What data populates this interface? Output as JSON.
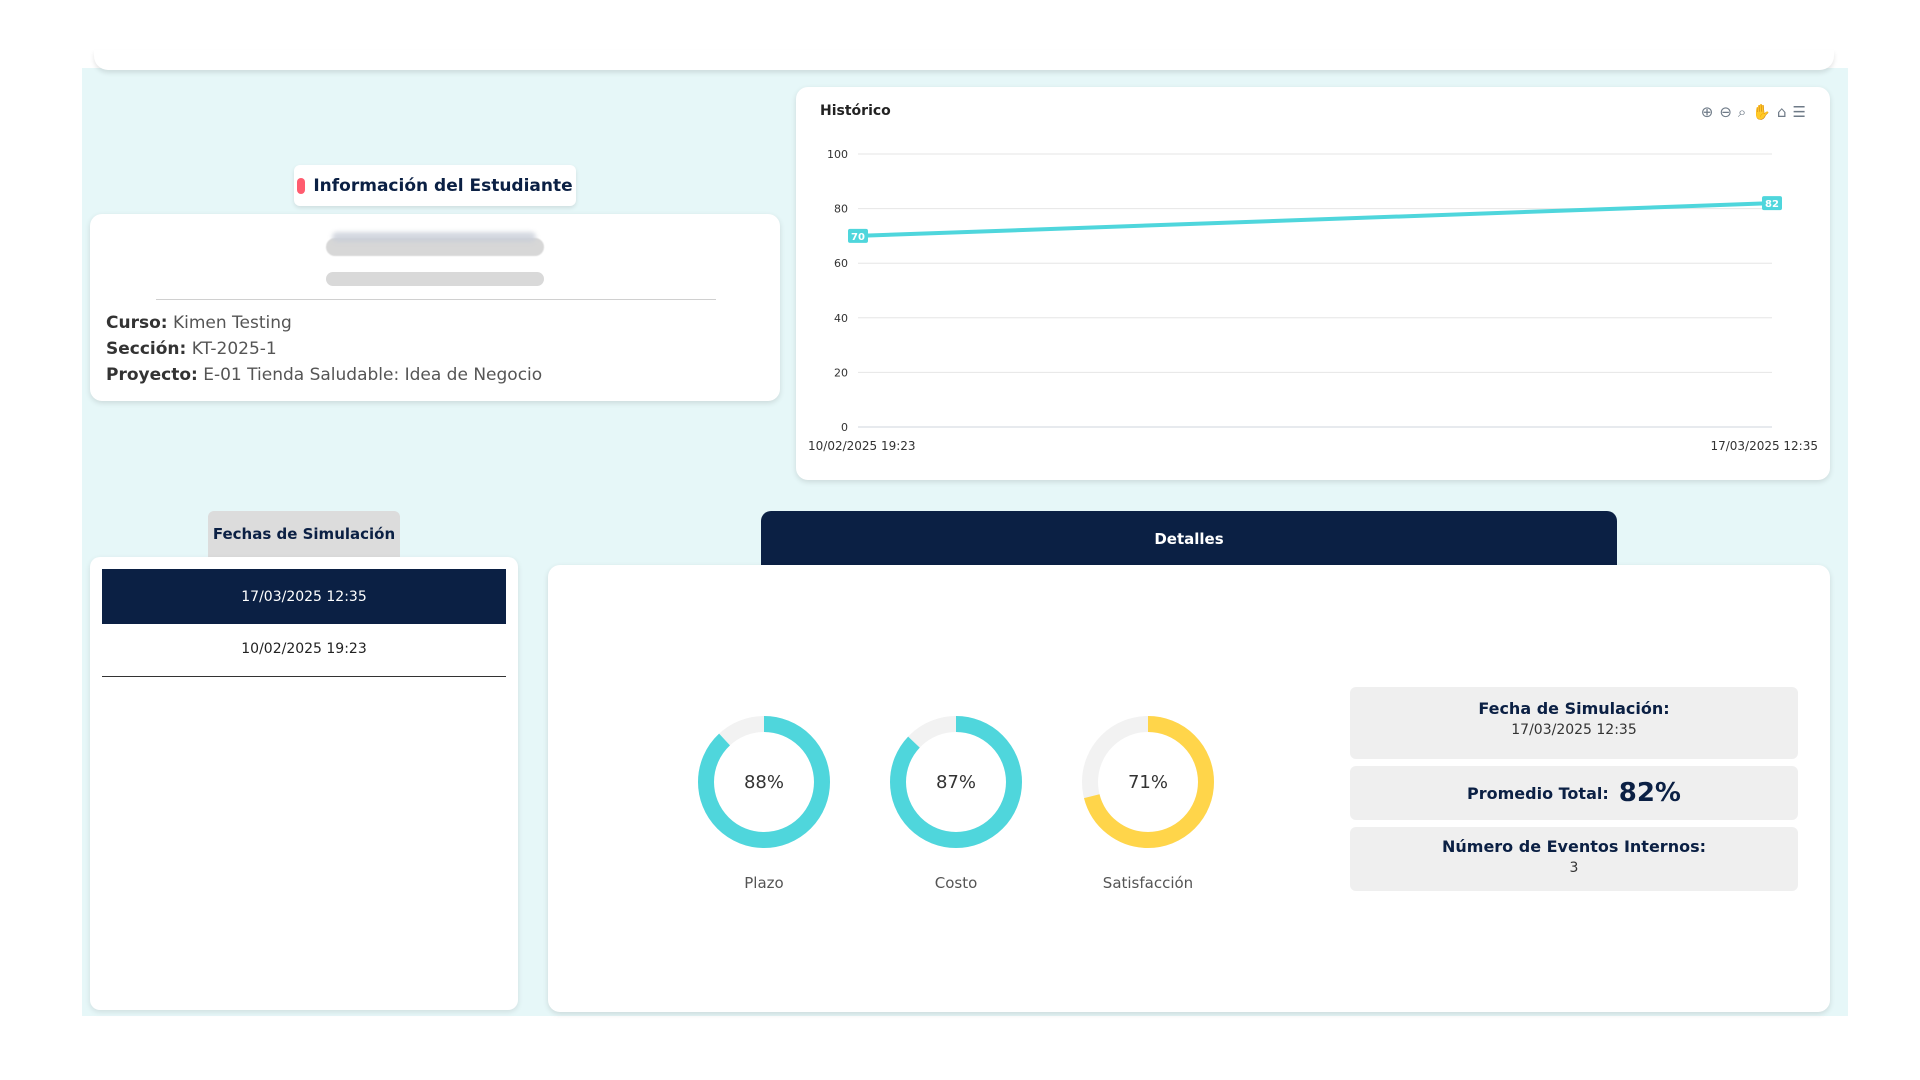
{
  "student": {
    "tab_label": "Información del Estudiante",
    "course_label": "Curso:",
    "course": "Kimen Testing",
    "section_label": "Sección:",
    "section": "KT-2025-1",
    "project_label": "Proyecto:",
    "project": "E-01 Tienda Saludable: Idea de Negocio"
  },
  "history": {
    "title": "Histórico",
    "toolbar_icons": [
      "zoom-in-icon",
      "zoom-out-icon",
      "magnify-icon",
      "pan-hand-icon",
      "home-icon",
      "menu-icon"
    ],
    "chart_data": {
      "type": "line",
      "title": "Histórico",
      "x": [
        "10/02/2025 19:23",
        "17/03/2025 12:35"
      ],
      "series": [
        {
          "values": [
            70,
            82
          ]
        }
      ],
      "data_labels": [
        "70",
        "82"
      ],
      "y_ticks": [
        "0",
        "20",
        "40",
        "60",
        "80",
        "100"
      ],
      "ylim": [
        0,
        100
      ],
      "grid": true,
      "color": "#4fd6dc"
    }
  },
  "dates": {
    "tab_label": "Fechas de Simulación",
    "items": [
      "17/03/2025 12:35",
      "10/02/2025 19:23"
    ]
  },
  "details": {
    "tab_label": "Detalles",
    "donuts": [
      {
        "label": "Plazo",
        "value": 88,
        "text": "88%",
        "color": "#4fd6dc"
      },
      {
        "label": "Costo",
        "value": 87,
        "text": "87%",
        "color": "#4fd6dc"
      },
      {
        "label": "Satisfacción",
        "value": 71,
        "text": "71%",
        "color": "#ffd54a"
      }
    ],
    "sim_date_label": "Fecha de Simulación:",
    "sim_date": "17/03/2025 12:35",
    "avg_label": "Promedio Total:",
    "avg": "82%",
    "events_label": "Número de Eventos Internos:",
    "events": "3"
  }
}
